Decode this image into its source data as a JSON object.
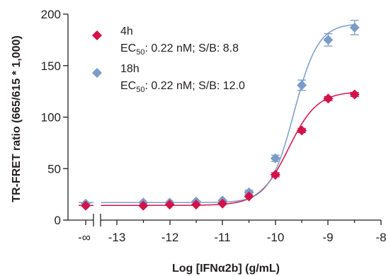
{
  "chart_data": {
    "type": "scatter",
    "xlabel": "Log [IFNα2b] (g/mL)",
    "ylabel": "TR-FRET ratio (665/615 * 1,000)",
    "xlim": [
      -13.5,
      -8
    ],
    "ylim": [
      0,
      200
    ],
    "x_ticks": [
      "-13",
      "-12",
      "-11",
      "-10",
      "-9",
      "-8"
    ],
    "x_break_label": "-∞",
    "y_ticks": [
      "0",
      "50",
      "100",
      "150",
      "200"
    ],
    "grid": false,
    "legend_position": "top-left",
    "series": [
      {
        "name": "4h",
        "detail_prefix": "EC",
        "detail_sub": "50",
        "detail_suffix": ": 0.22 nM; S/B: 8.8",
        "color": "#d2134a",
        "marker": "diamond",
        "zero_point": {
          "y": 14
        },
        "x": [
          -12.5,
          -12.0,
          -11.5,
          -11.0,
          -10.5,
          -10.0,
          -9.5,
          -9.0,
          -8.5
        ],
        "y": [
          14,
          15,
          15,
          16,
          23,
          44,
          87,
          118,
          122
        ],
        "err": [
          1,
          1,
          1,
          1,
          1,
          2,
          2,
          2,
          2
        ],
        "fit": {
          "bottom": 14.3,
          "top": 125,
          "log_ec50": -9.75,
          "hill": 1.6
        }
      },
      {
        "name": "18h",
        "detail_prefix": "EC",
        "detail_sub": "50",
        "detail_suffix": ": 0.22 nM; S/B: 12.0",
        "color": "#7b9bc8",
        "marker": "diamond",
        "zero_point": {
          "y": 16
        },
        "x": [
          -12.5,
          -12.0,
          -11.5,
          -11.0,
          -10.5,
          -10.0,
          -9.5,
          -9.0,
          -8.5
        ],
        "y": [
          17,
          17,
          18,
          19,
          27,
          60,
          131,
          175,
          187
        ],
        "err": [
          1,
          1,
          1,
          1,
          2,
          3,
          5,
          6,
          7
        ],
        "fit": {
          "bottom": 17,
          "top": 191,
          "log_ec50": -9.65,
          "hill": 1.9
        }
      }
    ]
  }
}
